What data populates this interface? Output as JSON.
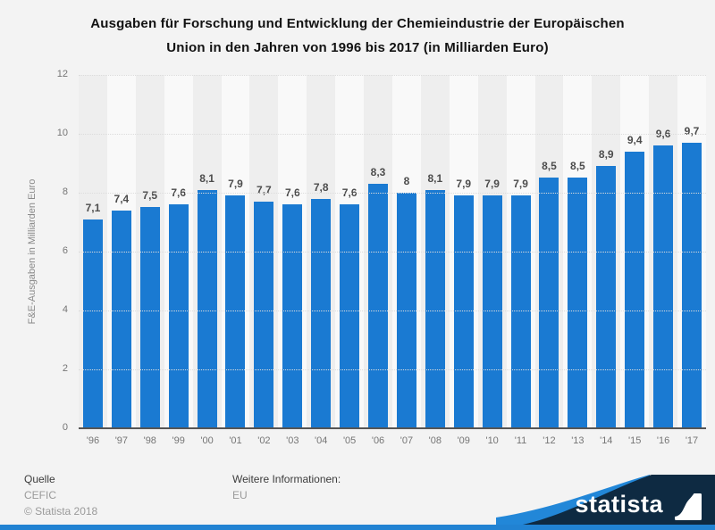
{
  "title": {
    "line1": "Ausgaben für Forschung und Entwicklung der Chemieindustrie der Europäischen",
    "line2": "Union in den Jahren von 1996 bis 2017 (in Milliarden Euro)"
  },
  "chart_data": {
    "type": "bar",
    "categories": [
      "'96",
      "'97",
      "'98",
      "'99",
      "'00",
      "'01",
      "'02",
      "'03",
      "'04",
      "'05",
      "'06",
      "'07",
      "'08",
      "'09",
      "'10",
      "'11",
      "'12",
      "'13",
      "'14",
      "'15",
      "'16",
      "'17"
    ],
    "values": [
      7.1,
      7.4,
      7.5,
      7.6,
      8.1,
      7.9,
      7.7,
      7.6,
      7.8,
      7.6,
      8.3,
      8,
      8.1,
      7.9,
      7.9,
      7.9,
      8.5,
      8.5,
      8.9,
      9.4,
      9.6,
      9.7
    ],
    "value_labels": [
      "7,1",
      "7,4",
      "7,5",
      "7,6",
      "8,1",
      "7,9",
      "7,7",
      "7,6",
      "7,8",
      "7,6",
      "8,3",
      "8",
      "8,1",
      "7,9",
      "7,9",
      "7,9",
      "8,5",
      "8,5",
      "8,9",
      "9,4",
      "9,6",
      "9,7"
    ],
    "title": "Ausgaben für Forschung und Entwicklung der Chemieindustrie der Europäischen Union in den Jahren von 1996 bis 2017 (in Milliarden Euro)",
    "xlabel": "",
    "ylabel": "F&E-Ausgaben in Milliarden Euro",
    "ylim": [
      0,
      12
    ],
    "yticks": [
      0,
      2,
      4,
      6,
      8,
      10,
      12
    ],
    "grid": "horizontal-dotted",
    "legend": "none",
    "bar_color": "#1a7ad2"
  },
  "footer": {
    "source_label": "Quelle",
    "source": "CEFIC",
    "copyright": "© Statista 2018",
    "info_label": "Weitere Informationen:",
    "info": "EU"
  },
  "branding": {
    "logo_text": "statista",
    "statista_icon": "statista-wave-square-icon",
    "navy": "#0e2a42",
    "blue": "#2287d8"
  }
}
